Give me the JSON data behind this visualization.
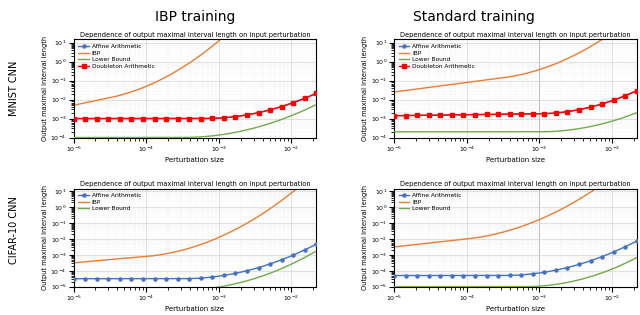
{
  "col_titles": [
    "IBP training",
    "Standard training"
  ],
  "row_labels": [
    "MNIST CNN",
    "CIFAR-10 CNN"
  ],
  "subplot_title": "Dependence of output maximal interval length on input perturbation",
  "xlabel": "Perturbation size",
  "ylabel": "Output maximal interval length",
  "colors": {
    "affine": "#4472c4",
    "ibp": "#ed7d31",
    "lower": "#70ad47",
    "doubleton": "#ff0000"
  },
  "panels": [
    {
      "id": "mnist_ibp",
      "has_doubleton": true,
      "xlim": [
        1e-05,
        0.022
      ],
      "ylim": [
        0.0001,
        15
      ],
      "vline": null,
      "affine": {
        "c0": -3.0,
        "c1": 0.0,
        "c2": 3.5,
        "knee": -3.2
      },
      "ibp": {
        "c0": -2.3,
        "c1": 0.8,
        "c2": 5.0,
        "knee": -4.5
      },
      "lower": {
        "c0": -4.0,
        "c1": 0.0,
        "c2": 3.2,
        "knee": -3.5
      },
      "doubleton": {
        "c0": -3.0,
        "c1": 0.0,
        "c2": 3.5,
        "knee": -3.2
      }
    },
    {
      "id": "mnist_std",
      "has_doubleton": true,
      "xlim": [
        1e-05,
        0.022
      ],
      "ylim": [
        0.0001,
        15
      ],
      "vline": 0.001,
      "affine": {
        "c0": -2.85,
        "c1": 0.05,
        "c2": 4.0,
        "knee": -3.0
      },
      "ibp": {
        "c0": -1.6,
        "c1": 0.5,
        "c2": 4.5,
        "knee": -3.5
      },
      "lower": {
        "c0": -3.7,
        "c1": 0.0,
        "c2": 3.5,
        "knee": -3.0
      },
      "doubleton": {
        "c0": -2.85,
        "c1": 0.05,
        "c2": 4.0,
        "knee": -3.0
      }
    },
    {
      "id": "cifar_ibp",
      "has_doubleton": false,
      "xlim": [
        1e-05,
        0.022
      ],
      "ylim": [
        1e-05,
        15
      ],
      "vline": null,
      "affine": {
        "c0": -4.5,
        "c1": 0.0,
        "c2": 4.0,
        "knee": -3.5
      },
      "ibp": {
        "c0": -3.5,
        "c1": 0.4,
        "c2": 5.0,
        "knee": -4.0
      },
      "lower": {
        "c0": -5.2,
        "c1": 0.0,
        "c2": 4.5,
        "knee": -3.5
      },
      "doubleton": null
    },
    {
      "id": "cifar_std",
      "has_doubleton": false,
      "xlim": [
        1e-05,
        0.022
      ],
      "ylim": [
        1e-05,
        15
      ],
      "vline": 0.001,
      "affine": {
        "c0": -4.3,
        "c1": 0.0,
        "c2": 4.0,
        "knee": -3.5
      },
      "ibp": {
        "c0": -2.5,
        "c1": 0.5,
        "c2": 4.5,
        "knee": -4.0
      },
      "lower": {
        "c0": -5.0,
        "c1": 0.0,
        "c2": 4.8,
        "knee": -3.2
      },
      "doubleton": null
    }
  ]
}
